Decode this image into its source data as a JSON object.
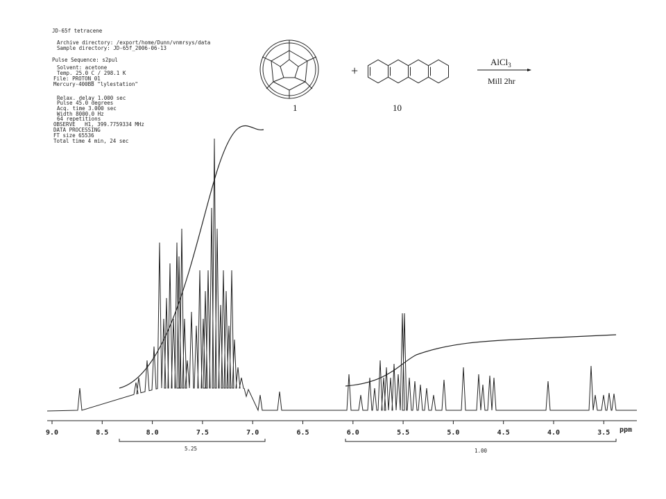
{
  "header": {
    "title": "JD-65f tetracene",
    "lines": [
      "Archive directory: /export/home/Dunn/vnmrsys/data",
      "Sample directory: JD-65f_2006-06-13",
      "Pulse Sequence: s2pul",
      "Solvent: acetone",
      "Temp. 25.0 C / 298.1 K",
      "File: PROTON_01",
      "Mercury-400BB \"lylestation\"",
      "Relax. delay 1.000 sec",
      "Pulse 45.0 degrees",
      "Acq. time 3.000 sec",
      "Width 8000.0 Hz",
      "64 repetitions",
      "OBSERVE   H1, 399.7759334 MHz",
      "DATA PROCESSING",
      "FT size 65536",
      "Total time 4 min, 24 sec"
    ]
  },
  "scheme": {
    "labels": [
      "1",
      "10"
    ],
    "plus": "+",
    "reagent": "AlCl",
    "reagent_subscript": "3",
    "condition": "Mill 2hr"
  },
  "axis": {
    "ticks": [
      "9.0",
      "8.5",
      "8.0",
      "7.5",
      "7.0",
      "6.5",
      "6.0",
      "5.5",
      "5.0",
      "4.5",
      "4.0",
      "3.5"
    ],
    "unit": "ppm"
  },
  "integrals": [
    "5.25",
    "1.00"
  ]
}
